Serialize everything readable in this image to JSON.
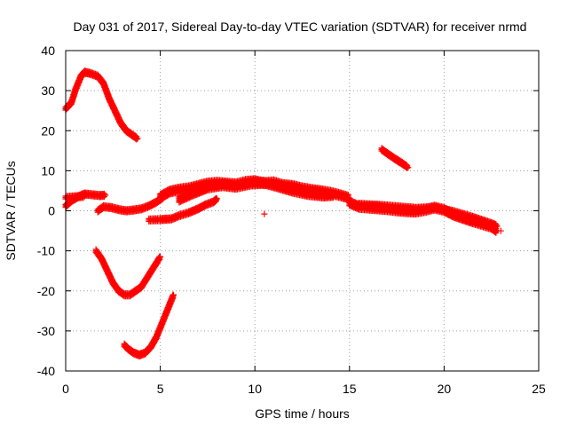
{
  "chart_data": {
    "type": "scatter",
    "title": "Day 031 of 2017, Sidereal Day-to-day VTEC variation (SDTVAR) for receiver nrmd",
    "xlabel": "GPS time / hours",
    "ylabel": "SDTVAR / TECUs",
    "xlim": [
      0,
      25
    ],
    "ylim": [
      -40,
      40
    ],
    "xticks": [
      0,
      5,
      10,
      15,
      20,
      25
    ],
    "yticks": [
      -40,
      -30,
      -20,
      -10,
      0,
      10,
      20,
      30,
      40
    ],
    "xtick_labels": [
      "0",
      "5",
      "10",
      "15",
      "20",
      "25"
    ],
    "ytick_labels": [
      "-40",
      "-30",
      "-20",
      "-10",
      "0",
      "10",
      "20",
      "30",
      "40"
    ],
    "grid": true,
    "marker": "+",
    "marker_color": "#ff0000",
    "series": [
      {
        "name": "arc-top-left",
        "width": 1.2,
        "points": [
          [
            0,
            25.5
          ],
          [
            0.3,
            27
          ],
          [
            0.5,
            30
          ],
          [
            0.8,
            33.5
          ],
          [
            1.0,
            34.6
          ],
          [
            1.3,
            34.3
          ],
          [
            1.7,
            33.6
          ],
          [
            2.0,
            31.8
          ],
          [
            2.3,
            28
          ],
          [
            2.6,
            25
          ],
          [
            2.9,
            22
          ],
          [
            3.2,
            20
          ],
          [
            3.5,
            19
          ],
          [
            3.8,
            18
          ]
        ]
      },
      {
        "name": "arc-left-near-zero",
        "width": 1.6,
        "points": [
          [
            0,
            1.2
          ],
          [
            0.3,
            2.5
          ],
          [
            0.7,
            3.6
          ],
          [
            1.0,
            4.2
          ],
          [
            1.4,
            4.0
          ],
          [
            1.8,
            3.8
          ],
          [
            2.1,
            3.9
          ]
        ]
      },
      {
        "name": "arc-left-low-band",
        "width": 1.2,
        "points": [
          [
            0,
            3.3
          ],
          [
            0.5,
            3.5
          ],
          [
            1.0,
            3.6
          ]
        ]
      },
      {
        "name": "arc-small-bump",
        "width": 1.2,
        "points": [
          [
            1.7,
            0
          ],
          [
            2.0,
            1
          ],
          [
            2.4,
            0.8
          ],
          [
            2.8,
            0.3
          ],
          [
            3.2,
            0
          ],
          [
            3.6,
            0.2
          ],
          [
            4.0,
            0.5
          ],
          [
            4.4,
            1.2
          ],
          [
            4.8,
            2.2
          ],
          [
            5.2,
            3.5
          ]
        ]
      },
      {
        "name": "arc-dip-20",
        "width": 1.2,
        "points": [
          [
            1.6,
            -10
          ],
          [
            1.9,
            -12
          ],
          [
            2.2,
            -15
          ],
          [
            2.5,
            -18
          ],
          [
            2.8,
            -20
          ],
          [
            3.1,
            -21
          ],
          [
            3.4,
            -21
          ],
          [
            3.7,
            -20
          ],
          [
            4.0,
            -19
          ],
          [
            4.4,
            -16
          ],
          [
            4.8,
            -13
          ],
          [
            5.0,
            -11.5
          ]
        ]
      },
      {
        "name": "arc-dip-35",
        "width": 1.2,
        "points": [
          [
            3.1,
            -33.5
          ],
          [
            3.3,
            -34.5
          ],
          [
            3.6,
            -35.5
          ],
          [
            3.9,
            -36
          ],
          [
            4.2,
            -35.5
          ],
          [
            4.5,
            -34
          ],
          [
            4.8,
            -31.5
          ],
          [
            5.1,
            -28
          ],
          [
            5.4,
            -24.5
          ],
          [
            5.7,
            -21
          ]
        ]
      },
      {
        "name": "arc-neg2",
        "width": 1.8,
        "points": [
          [
            4.4,
            -2.3
          ],
          [
            5.0,
            -2.2
          ],
          [
            5.6,
            -2
          ],
          [
            6.0,
            -1.2
          ],
          [
            6.5,
            -0.5
          ],
          [
            7.0,
            0.5
          ],
          [
            7.4,
            1.5
          ],
          [
            7.8,
            2.2
          ],
          [
            8.0,
            3
          ]
        ]
      },
      {
        "name": "arc-broad-hump",
        "width": 2.8,
        "points": [
          [
            5.0,
            3.5
          ],
          [
            5.5,
            4.8
          ],
          [
            6.0,
            5.3
          ],
          [
            6.5,
            5.6
          ],
          [
            7.0,
            6.2
          ],
          [
            7.5,
            6.8
          ],
          [
            8.0,
            7.0
          ],
          [
            8.5,
            6.8
          ],
          [
            9.0,
            6.6
          ],
          [
            9.5,
            7.2
          ],
          [
            10.0,
            7.4
          ],
          [
            10.5,
            6.9
          ],
          [
            11.0,
            7.1
          ],
          [
            11.5,
            6.4
          ],
          [
            12.0,
            6.2
          ],
          [
            12.5,
            5.6
          ],
          [
            13.0,
            5.2
          ],
          [
            13.5,
            4.9
          ],
          [
            14.0,
            4.5
          ],
          [
            14.5,
            3.9
          ],
          [
            15.0,
            3.2
          ]
        ]
      },
      {
        "name": "arc-hump-lower",
        "width": 2.2,
        "points": [
          [
            6.0,
            2.8
          ],
          [
            6.8,
            4.5
          ],
          [
            7.5,
            5.8
          ],
          [
            8.3,
            6.4
          ],
          [
            9.0,
            6.0
          ],
          [
            9.8,
            6.8
          ],
          [
            10.5,
            7.0
          ],
          [
            11.2,
            6.1
          ],
          [
            12.0,
            5.0
          ],
          [
            12.8,
            4.2
          ],
          [
            13.6,
            3.8
          ],
          [
            14.2,
            4.0
          ]
        ]
      },
      {
        "name": "arc-right-decline",
        "width": 2.6,
        "points": [
          [
            15.0,
            2.0
          ],
          [
            15.5,
            1.0
          ],
          [
            16.0,
            0.8
          ],
          [
            16.5,
            0.6
          ],
          [
            17.0,
            0.4
          ],
          [
            17.5,
            0.1
          ],
          [
            18.0,
            -0.1
          ],
          [
            18.5,
            -0.2
          ],
          [
            19.0,
            0.2
          ],
          [
            19.5,
            0.8
          ],
          [
            20.0,
            0.2
          ],
          [
            20.5,
            -1.0
          ],
          [
            21.0,
            -1.8
          ],
          [
            21.5,
            -2.6
          ],
          [
            22.0,
            -3.3
          ],
          [
            22.5,
            -4.0
          ],
          [
            22.8,
            -5.0
          ]
        ]
      },
      {
        "name": "arc-right-decline-upper",
        "width": 1.8,
        "points": [
          [
            15.5,
            1.6
          ],
          [
            16.5,
            1.4
          ],
          [
            17.5,
            1.0
          ],
          [
            18.5,
            0.6
          ],
          [
            19.5,
            0.8
          ],
          [
            20.5,
            -0.2
          ],
          [
            21.5,
            -1.6
          ],
          [
            22.5,
            -3.2
          ],
          [
            22.8,
            -3.8
          ]
        ]
      },
      {
        "name": "arc-short-15",
        "width": 1.2,
        "points": [
          [
            16.7,
            15.3
          ],
          [
            17.0,
            14.3
          ],
          [
            17.4,
            13.0
          ],
          [
            17.8,
            11.8
          ],
          [
            18.1,
            10.8
          ]
        ]
      },
      {
        "name": "outlier-10.5",
        "width": 0,
        "points": [
          [
            10.5,
            -0.8
          ]
        ]
      },
      {
        "name": "outlier-23",
        "width": 0,
        "points": [
          [
            23.0,
            -5.0
          ]
        ]
      }
    ]
  }
}
